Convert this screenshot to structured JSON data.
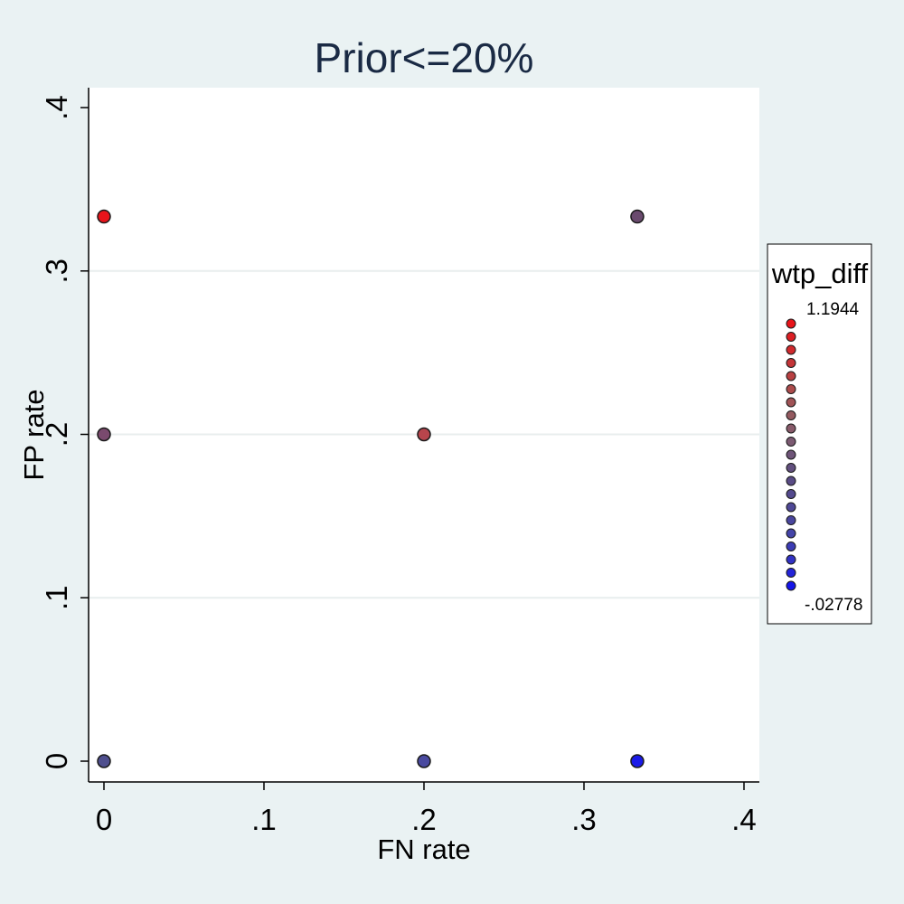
{
  "chart_data": {
    "type": "scatter",
    "title": "Prior<=20%",
    "xlabel": "FN rate",
    "ylabel": "FP rate",
    "xlim": [
      0,
      0.4
    ],
    "ylim": [
      0,
      0.4
    ],
    "xticks": [
      0,
      0.1,
      0.2,
      0.3,
      0.4
    ],
    "xtick_labels": [
      "0",
      ".1",
      ".2",
      ".3",
      ".4"
    ],
    "yticks": [
      0,
      0.1,
      0.2,
      0.3,
      0.4
    ],
    "ytick_labels": [
      "0",
      ".1",
      ".2",
      ".3",
      ".4"
    ],
    "grid": true,
    "points": [
      {
        "x": 0,
        "y": 0.3333,
        "color": "#e8141a"
      },
      {
        "x": 0,
        "y": 0.2,
        "color": "#7a4a6e"
      },
      {
        "x": 0,
        "y": 0,
        "color": "#4f4f8e"
      },
      {
        "x": 0.2,
        "y": 0.2,
        "color": "#b8454c"
      },
      {
        "x": 0.2,
        "y": 0,
        "color": "#4a4aa0"
      },
      {
        "x": 0.3333,
        "y": 0.3333,
        "color": "#6a4a6e"
      },
      {
        "x": 0.3333,
        "y": 0,
        "color": "#1a1ae8"
      }
    ],
    "legend": {
      "title": "wtp_diff",
      "max_label": "1.1944",
      "min_label": "-.02778",
      "placement": "right",
      "colors": [
        "#e8141a",
        "#dc1f24",
        "#d02a2e",
        "#c43538",
        "#b84042",
        "#ac4b4c",
        "#a05356",
        "#945a60",
        "#885a6a",
        "#7c5a72",
        "#6e5478",
        "#624f7e",
        "#5a4c86",
        "#544a8e",
        "#4f4896",
        "#4a469e",
        "#4444a8",
        "#3c3cb4",
        "#3232c4",
        "#2424d8",
        "#1414e8"
      ]
    }
  }
}
